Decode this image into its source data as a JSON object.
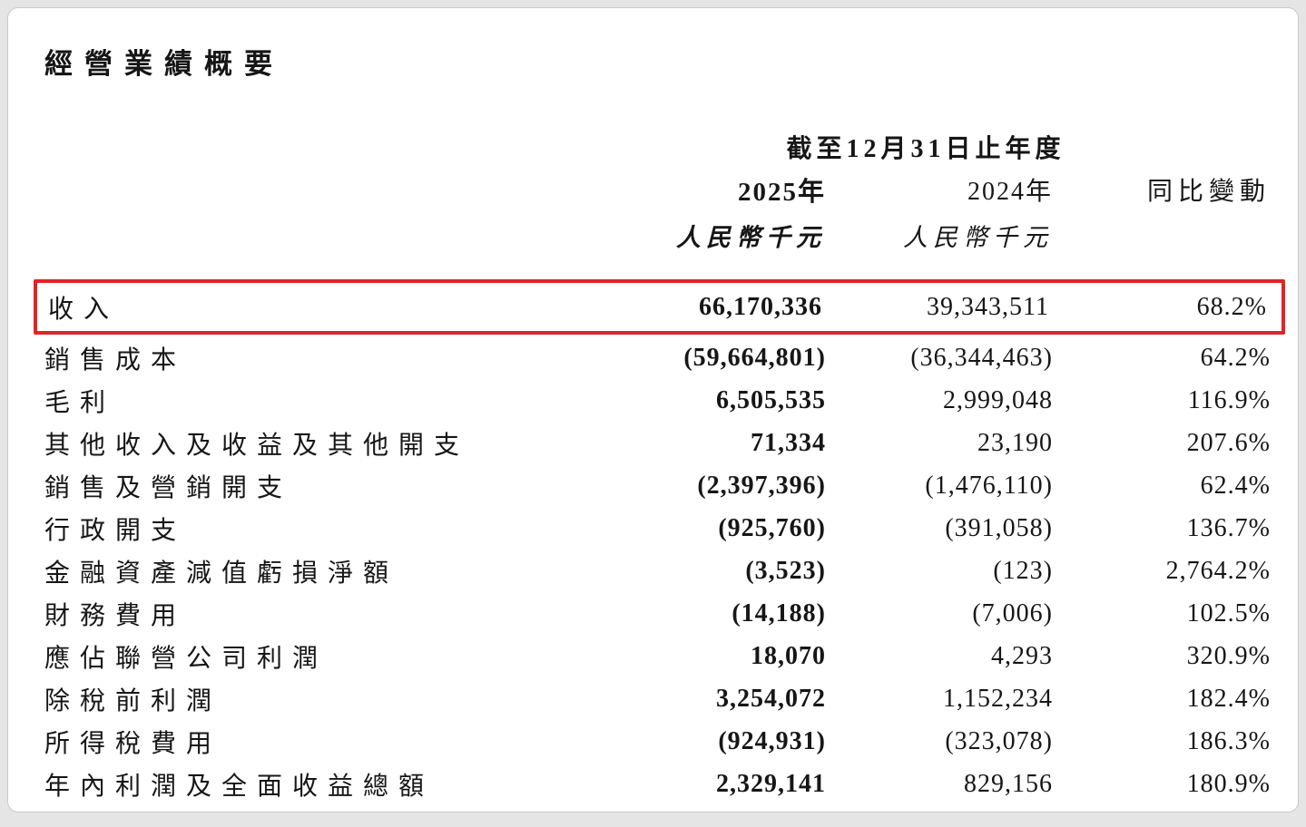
{
  "page": {
    "title": "經營業績概要",
    "table": {
      "period_header": "截至12月31日止年度",
      "col_2025": "2025年",
      "col_2024": "2024年",
      "col_change": "同比變動",
      "unit_2025": "人民幣千元",
      "unit_2024": "人民幣千元",
      "highlight_color": "#e12424",
      "rows": [
        {
          "label": "收入",
          "v2025": "66,170,336",
          "v2024": "39,343,511",
          "change": "68.2%",
          "highlight": true
        },
        {
          "label": "銷售成本",
          "v2025": "(59,664,801)",
          "v2024": "(36,344,463)",
          "change": "64.2%"
        },
        {
          "label": "毛利",
          "v2025": "6,505,535",
          "v2024": "2,999,048",
          "change": "116.9%"
        },
        {
          "label": "其他收入及收益及其他開支",
          "v2025": "71,334",
          "v2024": "23,190",
          "change": "207.6%"
        },
        {
          "label": "銷售及營銷開支",
          "v2025": "(2,397,396)",
          "v2024": "(1,476,110)",
          "change": "62.4%"
        },
        {
          "label": "行政開支",
          "v2025": "(925,760)",
          "v2024": "(391,058)",
          "change": "136.7%"
        },
        {
          "label": "金融資產減值虧損淨額",
          "v2025": "(3,523)",
          "v2024": "(123)",
          "change": "2,764.2%"
        },
        {
          "label": "財務費用",
          "v2025": "(14,188)",
          "v2024": "(7,006)",
          "change": "102.5%"
        },
        {
          "label": "應佔聯營公司利潤",
          "v2025": "18,070",
          "v2024": "4,293",
          "change": "320.9%"
        },
        {
          "label": "除稅前利潤",
          "v2025": "3,254,072",
          "v2024": "1,152,234",
          "change": "182.4%"
        },
        {
          "label": "所得稅費用",
          "v2025": "(924,931)",
          "v2024": "(323,078)",
          "change": "186.3%"
        },
        {
          "label": "年內利潤及全面收益總額",
          "v2025": "2,329,141",
          "v2024": "829,156",
          "change": "180.9%"
        }
      ]
    }
  }
}
